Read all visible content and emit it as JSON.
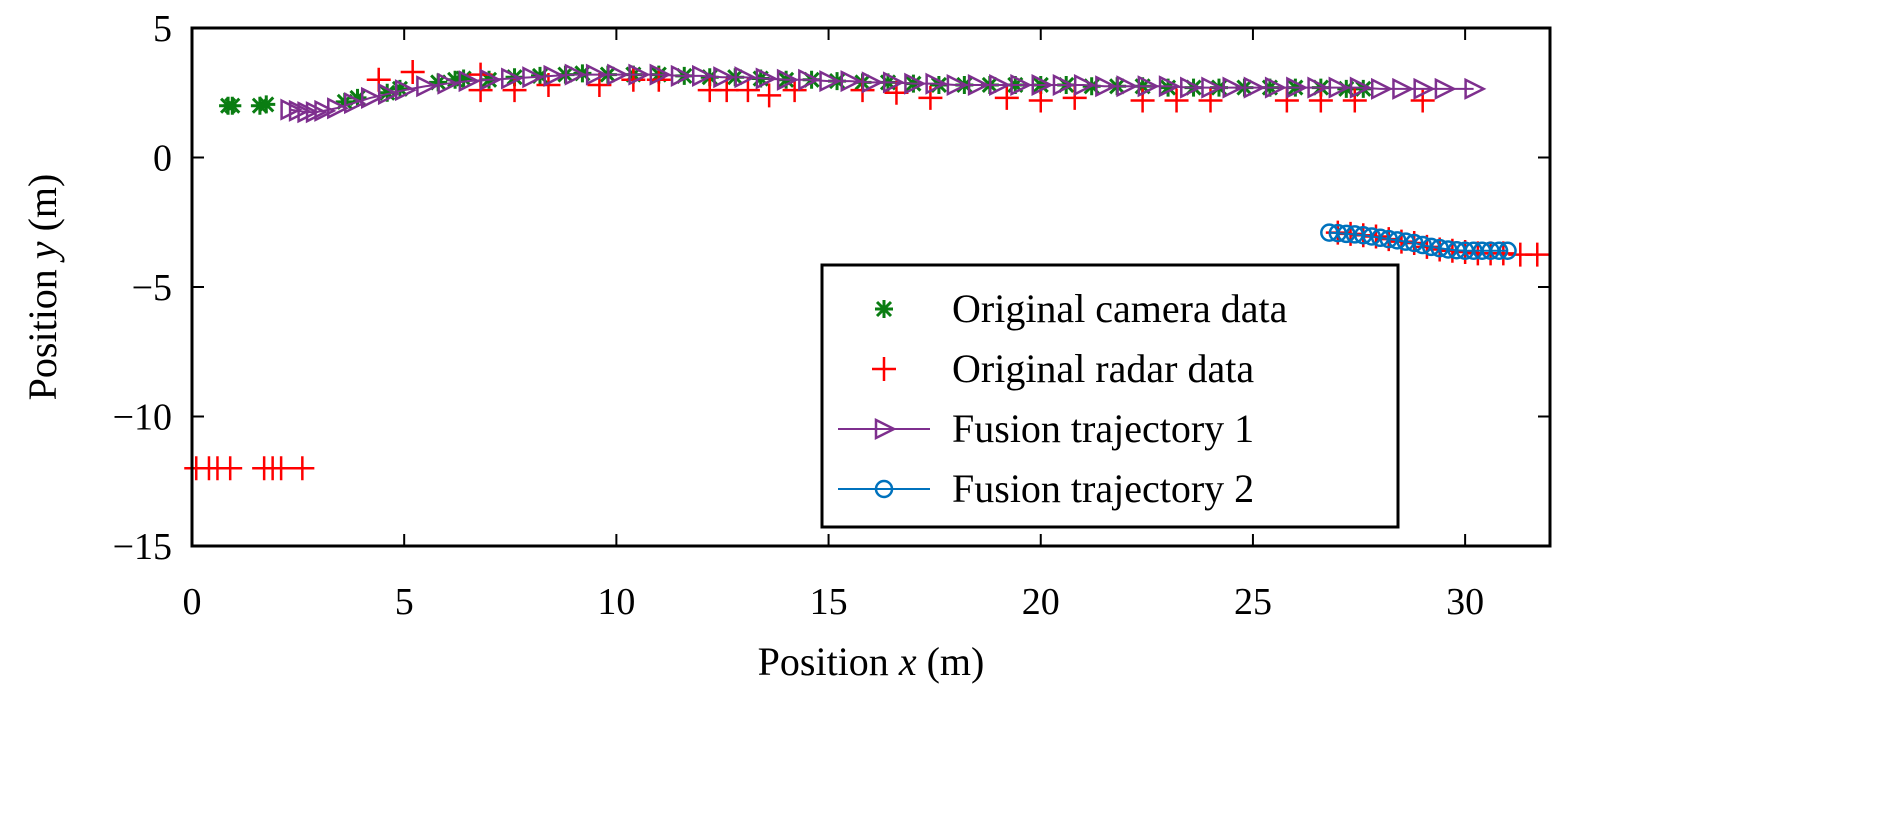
{
  "chart_data": {
    "type": "scatter",
    "title": "",
    "xlabel": {
      "prefix": "Position ",
      "var": "x",
      "suffix": " (m)"
    },
    "ylabel": {
      "prefix": "Position ",
      "var": "y",
      "suffix": " (m)"
    },
    "xlim": [
      0,
      32
    ],
    "ylim": [
      -15,
      5
    ],
    "xticks": [
      0,
      5,
      10,
      15,
      20,
      25,
      30
    ],
    "yticks": [
      5,
      0,
      -5,
      -10,
      -15
    ],
    "xtick_labels": [
      "0",
      "5",
      "10",
      "15",
      "20",
      "25",
      "30"
    ],
    "ytick_labels": [
      "5",
      "0",
      "−5",
      "−10",
      "−15"
    ],
    "grid": false,
    "legend_placement": "lower-right",
    "series": [
      {
        "name": "Original camera data",
        "marker": "asterisk",
        "line": false,
        "color": "#0a7d12",
        "points": [
          [
            0.85,
            2.0
          ],
          [
            0.95,
            2.0
          ],
          [
            1.6,
            2.0
          ],
          [
            1.75,
            2.05
          ],
          [
            3.6,
            2.15
          ],
          [
            3.9,
            2.3
          ],
          [
            4.6,
            2.5
          ],
          [
            4.9,
            2.65
          ],
          [
            5.8,
            2.9
          ],
          [
            6.2,
            3.0
          ],
          [
            6.4,
            3.05
          ],
          [
            7,
            3.0
          ],
          [
            7.6,
            3.1
          ],
          [
            8.2,
            3.15
          ],
          [
            8.8,
            3.2
          ],
          [
            9.2,
            3.25
          ],
          [
            9.8,
            3.2
          ],
          [
            10.4,
            3.2
          ],
          [
            11,
            3.2
          ],
          [
            11.6,
            3.15
          ],
          [
            12.2,
            3.1
          ],
          [
            12.8,
            3.1
          ],
          [
            13.4,
            3.05
          ],
          [
            14,
            3.0
          ],
          [
            14.6,
            3.0
          ],
          [
            15.2,
            2.95
          ],
          [
            15.8,
            2.9
          ],
          [
            16.4,
            2.9
          ],
          [
            17,
            2.85
          ],
          [
            17.6,
            2.8
          ],
          [
            18.2,
            2.8
          ],
          [
            18.8,
            2.8
          ],
          [
            19.4,
            2.8
          ],
          [
            20,
            2.8
          ],
          [
            20.6,
            2.8
          ],
          [
            21.2,
            2.75
          ],
          [
            21.8,
            2.75
          ],
          [
            22.4,
            2.75
          ],
          [
            23,
            2.7
          ],
          [
            23.6,
            2.7
          ],
          [
            24.2,
            2.7
          ],
          [
            24.8,
            2.7
          ],
          [
            25.4,
            2.7
          ],
          [
            26,
            2.7
          ],
          [
            26.6,
            2.7
          ],
          [
            27.2,
            2.65
          ],
          [
            27.6,
            2.65
          ]
        ]
      },
      {
        "name": "Original radar data",
        "marker": "plus",
        "line": false,
        "color": "#ff0000",
        "points": [
          [
            4.4,
            3.0
          ],
          [
            5.2,
            3.3
          ],
          [
            6.8,
            3.2
          ],
          [
            6.8,
            2.6
          ],
          [
            7.6,
            2.6
          ],
          [
            8.4,
            2.8
          ],
          [
            9.6,
            2.8
          ],
          [
            10.4,
            3.0
          ],
          [
            11,
            3.0
          ],
          [
            12.2,
            2.6
          ],
          [
            12.6,
            2.6
          ],
          [
            13.1,
            2.6
          ],
          [
            13.6,
            2.4
          ],
          [
            14.2,
            2.6
          ],
          [
            15.8,
            2.6
          ],
          [
            16.6,
            2.5
          ],
          [
            17.4,
            2.3
          ],
          [
            19.2,
            2.3
          ],
          [
            20,
            2.2
          ],
          [
            20.8,
            2.3
          ],
          [
            22.4,
            2.2
          ],
          [
            23.2,
            2.2
          ],
          [
            24,
            2.2
          ],
          [
            25.8,
            2.2
          ],
          [
            26.6,
            2.2
          ],
          [
            27.4,
            2.2
          ],
          [
            29,
            2.2
          ],
          [
            0.1,
            -12
          ],
          [
            0.4,
            -12
          ],
          [
            0.6,
            -12
          ],
          [
            0.9,
            -12
          ],
          [
            1.7,
            -12
          ],
          [
            1.9,
            -12
          ],
          [
            2.1,
            -12
          ],
          [
            2.6,
            -12
          ],
          [
            27,
            -2.9
          ],
          [
            27.3,
            -2.95
          ],
          [
            27.6,
            -3.0
          ],
          [
            27.9,
            -3.05
          ],
          [
            28.2,
            -3.15
          ],
          [
            28.5,
            -3.25
          ],
          [
            28.8,
            -3.3
          ],
          [
            29.1,
            -3.45
          ],
          [
            29.4,
            -3.55
          ],
          [
            29.7,
            -3.6
          ],
          [
            30,
            -3.65
          ],
          [
            30.3,
            -3.7
          ],
          [
            30.6,
            -3.7
          ],
          [
            30.9,
            -3.7
          ],
          [
            31.3,
            -3.75
          ],
          [
            31.7,
            -3.75
          ]
        ]
      },
      {
        "name": "Fusion trajectory 1",
        "marker": "triangle-right",
        "line": true,
        "color": "#7e2f8e",
        "points": [
          [
            2.3,
            1.85
          ],
          [
            2.5,
            1.8
          ],
          [
            2.7,
            1.75
          ],
          [
            2.9,
            1.75
          ],
          [
            3.1,
            1.8
          ],
          [
            3.4,
            1.9
          ],
          [
            3.8,
            2.1
          ],
          [
            4.2,
            2.3
          ],
          [
            4.6,
            2.45
          ],
          [
            5.0,
            2.6
          ],
          [
            5.5,
            2.75
          ],
          [
            6.0,
            2.85
          ],
          [
            6.5,
            2.95
          ],
          [
            7.0,
            3.0
          ],
          [
            7.5,
            3.05
          ],
          [
            8.0,
            3.1
          ],
          [
            8.5,
            3.15
          ],
          [
            9.0,
            3.2
          ],
          [
            9.5,
            3.2
          ],
          [
            10,
            3.2
          ],
          [
            10.5,
            3.2
          ],
          [
            11,
            3.2
          ],
          [
            11.5,
            3.15
          ],
          [
            12,
            3.15
          ],
          [
            12.5,
            3.1
          ],
          [
            13,
            3.1
          ],
          [
            13.5,
            3.05
          ],
          [
            14,
            3.0
          ],
          [
            14.5,
            3.0
          ],
          [
            15,
            2.95
          ],
          [
            15.5,
            2.95
          ],
          [
            16,
            2.9
          ],
          [
            16.5,
            2.9
          ],
          [
            17,
            2.85
          ],
          [
            17.5,
            2.85
          ],
          [
            18,
            2.8
          ],
          [
            18.5,
            2.8
          ],
          [
            19,
            2.8
          ],
          [
            19.5,
            2.8
          ],
          [
            20,
            2.8
          ],
          [
            20.5,
            2.8
          ],
          [
            21,
            2.8
          ],
          [
            21.5,
            2.75
          ],
          [
            22,
            2.75
          ],
          [
            22.5,
            2.75
          ],
          [
            23,
            2.75
          ],
          [
            23.5,
            2.7
          ],
          [
            24,
            2.7
          ],
          [
            24.5,
            2.7
          ],
          [
            25,
            2.7
          ],
          [
            25.5,
            2.7
          ],
          [
            26,
            2.7
          ],
          [
            26.5,
            2.7
          ],
          [
            27,
            2.7
          ],
          [
            27.5,
            2.7
          ],
          [
            28,
            2.65
          ],
          [
            28.5,
            2.65
          ],
          [
            29,
            2.65
          ],
          [
            29.5,
            2.65
          ],
          [
            30.2,
            2.65
          ]
        ]
      },
      {
        "name": "Fusion trajectory 2",
        "marker": "circle",
        "line": true,
        "color": "#0072bd",
        "points": [
          [
            26.8,
            -2.9
          ],
          [
            27.0,
            -2.92
          ],
          [
            27.2,
            -2.95
          ],
          [
            27.4,
            -2.97
          ],
          [
            27.6,
            -3.0
          ],
          [
            27.8,
            -3.05
          ],
          [
            28.0,
            -3.1
          ],
          [
            28.2,
            -3.15
          ],
          [
            28.4,
            -3.2
          ],
          [
            28.6,
            -3.25
          ],
          [
            28.8,
            -3.3
          ],
          [
            29.0,
            -3.38
          ],
          [
            29.2,
            -3.45
          ],
          [
            29.4,
            -3.5
          ],
          [
            29.6,
            -3.55
          ],
          [
            29.8,
            -3.58
          ],
          [
            30.0,
            -3.6
          ],
          [
            30.2,
            -3.6
          ],
          [
            30.4,
            -3.6
          ],
          [
            30.6,
            -3.6
          ],
          [
            30.8,
            -3.6
          ],
          [
            31.0,
            -3.6
          ]
        ]
      }
    ]
  }
}
